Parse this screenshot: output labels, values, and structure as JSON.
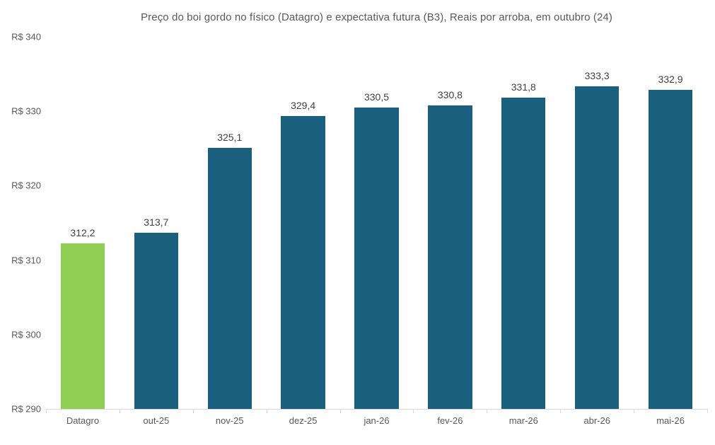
{
  "chart_data": {
    "type": "bar",
    "title": "Preço do boi gordo no físico (Datagro)  e expectativa futura (B3), Reais por arroba, em outubro (24)",
    "categories": [
      "Datagro",
      "out-25",
      "nov-25",
      "dez-25",
      "jan-26",
      "fev-26",
      "mar-26",
      "abr-26",
      "mai-26"
    ],
    "values": [
      312.2,
      313.7,
      325.1,
      329.4,
      330.5,
      330.8,
      331.8,
      333.3,
      332.9
    ],
    "value_labels": [
      "312,2",
      "313,7",
      "325,1",
      "329,4",
      "330,5",
      "330,8",
      "331,8",
      "333,3",
      "332,9"
    ],
    "y_axis": {
      "min": 290,
      "max": 340,
      "step": 10,
      "tick_labels": [
        "R$ 290",
        "R$ 300",
        "R$ 310",
        "R$ 320",
        "R$ 330",
        "R$ 340"
      ]
    },
    "colors": {
      "highlight": "#8FCD54",
      "default": "#1B5F7F",
      "axis_line": "#d9d9d9",
      "title_text": "#595959",
      "label_text": "#404040",
      "tick_text": "#595959"
    },
    "highlight_index": 0,
    "grid": false,
    "legend": "none",
    "xlabel": "",
    "ylabel": ""
  }
}
